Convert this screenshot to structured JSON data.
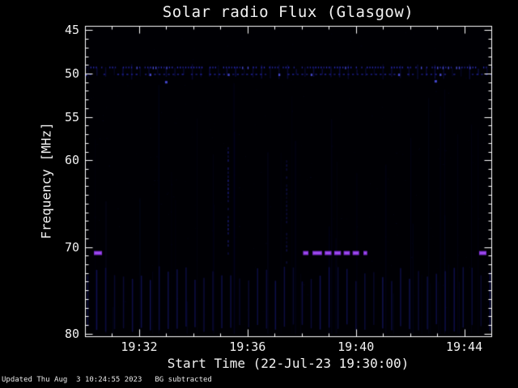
{
  "page": {
    "footer": {
      "updated": "Updated Thu Aug  3 10:24:55 2023",
      "note": "BG subtracted"
    }
  },
  "chart_data": {
    "type": "heatmap",
    "title": "Solar radio Flux (Glasgow)",
    "xlabel": "Start Time (22-Jul-23 19:30:00)",
    "ylabel": "Frequency [MHz]",
    "x_unit": "minutes after 19:30 UT",
    "x_range_minutes": [
      0,
      15
    ],
    "x_ticks": [
      {
        "minute": 2,
        "label": "19:32"
      },
      {
        "minute": 6,
        "label": "19:36"
      },
      {
        "minute": 10,
        "label": "19:40"
      },
      {
        "minute": 14,
        "label": "19:44"
      }
    ],
    "x_minor_tick_step_minutes": 1,
    "y_range_mhz": [
      44.5,
      80.3
    ],
    "y_ticks": [
      {
        "mhz": 45,
        "label": "45"
      },
      {
        "mhz": 50,
        "label": "50"
      },
      {
        "mhz": 55,
        "label": "55"
      },
      {
        "mhz": 60,
        "label": "60"
      },
      {
        "mhz": 70,
        "label": "70"
      },
      {
        "mhz": 80,
        "label": "80"
      }
    ],
    "y_minor_tick_step_mhz": 1,
    "grid": false,
    "legend": false,
    "colors": {
      "frame": "#ffffff",
      "text": "#f2f2f2",
      "background": "#000000",
      "plot_bg": "#000004",
      "faint_blue": "#1c1e8e",
      "rfi_blue": "#2a2cc0",
      "bright_blue": "#4b4fe0",
      "burst_purple": "#8233d6",
      "burst_purple_bright": "#a24df0"
    },
    "features": [
      {
        "kind": "noise",
        "count": 420,
        "mhz_from": 45.0,
        "mhz_to": 80.2,
        "color": "#14166e",
        "alpha": 0.2,
        "note": "weak blue background speckle across the whole spectrum"
      },
      {
        "kind": "faint_columns",
        "count": 40,
        "mhz_from": 51.0,
        "mhz_to": 80.0,
        "color": "#10125e",
        "alpha": 0.2,
        "note": "very faint broadband vertical texture"
      },
      {
        "kind": "comb",
        "mhz_top": 72.6,
        "mhz_bottom": 79.8,
        "step_min": 0.33,
        "color": "#1e20a0",
        "alpha": 0.5,
        "note": "periodic vertical stripe pattern between ~72 and 80 MHz across full interval"
      },
      {
        "kind": "tick_streaks",
        "mhz_center": 49.8,
        "half_height_mhz": 0.9,
        "step_min": 0.32,
        "color": "#15177a",
        "alpha": 0.5,
        "note": "short vertical streaks hanging around the 50 MHz RFI line"
      },
      {
        "kind": "dotted_hline",
        "mhz": 49.3,
        "step_min": 0.1,
        "dot_min": 0.04,
        "thickness": 2,
        "color": "#2a2cc0",
        "alpha": 0.95,
        "note": "persistent dotted narrowband RFI line just above 49 MHz spanning 19:30-19:45"
      },
      {
        "kind": "dotted_hline",
        "mhz": 50.1,
        "step_min": 0.17,
        "dot_min": 0.07,
        "thickness": 2,
        "color": "#20229c",
        "alpha": 0.7,
        "note": "second weaker dashed RFI component near 50 MHz"
      },
      {
        "kind": "points",
        "size": 3,
        "color": "#4246cc",
        "points": [
          {
            "t": 3.0,
            "mhz": 51.0
          },
          {
            "t": 12.95,
            "mhz": 50.9
          }
        ],
        "note": "isolated compact blue points near 51 MHz at ~19:33 and ~19:43"
      },
      {
        "kind": "vstreak_dotted",
        "t": 5.26,
        "mhz_from": 58.5,
        "mhz_to": 71.0,
        "color": "#23259e",
        "alpha": 0.65,
        "note": "dotted vertical streak at ~19:35:15 between ~58 and 71 MHz"
      },
      {
        "kind": "vstreak_dotted",
        "t": 7.42,
        "mhz_from": 60.0,
        "mhz_to": 72.3,
        "color": "#1c1e8a",
        "alpha": 0.45,
        "note": "fainter dotted vertical streak at ~19:37:25"
      },
      {
        "kind": "burst_dashes",
        "mhz": 70.7,
        "thickness": 5,
        "color": "#8233d6",
        "bright": "#a24df0",
        "segments": [
          [
            0.33,
            0.63
          ],
          [
            8.05,
            8.25
          ],
          [
            8.4,
            8.75
          ],
          [
            8.85,
            9.1
          ],
          [
            9.2,
            9.45
          ],
          [
            9.55,
            9.78
          ],
          [
            9.88,
            10.12
          ],
          [
            10.28,
            10.42
          ],
          [
            14.55,
            14.82
          ]
        ],
        "note": "bright purple emission dashes at ~71 MHz: 19:30:20-19:30:40, repeated bursts 19:38-19:40:30, and 19:44:35-19:44:50"
      }
    ]
  }
}
